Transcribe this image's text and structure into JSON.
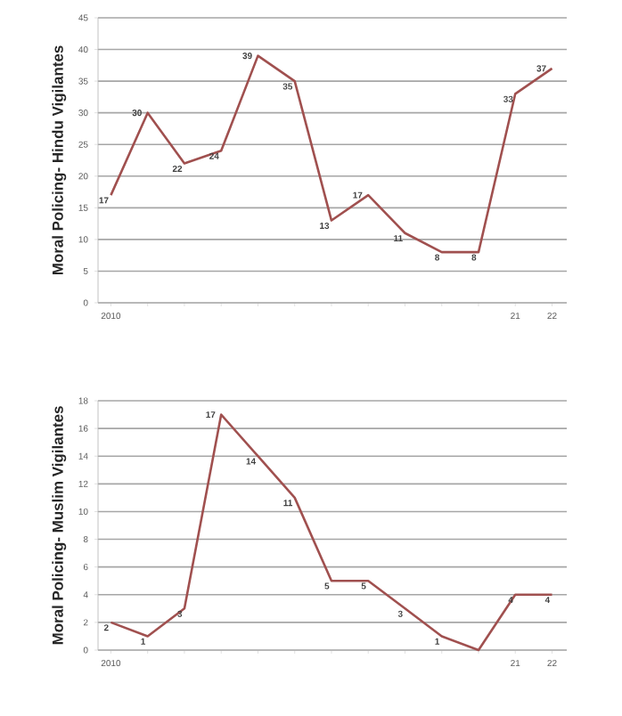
{
  "chart_data": [
    {
      "type": "line",
      "ylabel": "Moral Policing- Hindu Vigilantes",
      "categories": [
        "2010",
        null,
        null,
        null,
        null,
        null,
        null,
        null,
        null,
        null,
        null,
        "21",
        "22"
      ],
      "series": [
        {
          "color": "#a0504f",
          "values": [
            17,
            30,
            22,
            24,
            39,
            35,
            13,
            17,
            11,
            8,
            8,
            33,
            37
          ]
        }
      ],
      "ylim": [
        0,
        45
      ],
      "yticks": [
        0,
        5,
        10,
        15,
        20,
        25,
        30,
        35,
        40,
        45
      ],
      "grid": "y",
      "data_labels": true
    },
    {
      "type": "line",
      "ylabel": "Moral Policing- Muslim Vigilantes",
      "categories": [
        "2010",
        null,
        null,
        null,
        null,
        null,
        null,
        null,
        null,
        null,
        null,
        "21",
        "22"
      ],
      "series": [
        {
          "color": "#a0504f",
          "values": [
            2,
            1,
            3,
            17,
            14,
            11,
            5,
            5,
            3,
            1,
            0,
            4,
            4
          ],
          "value_labels": [
            "2",
            "1",
            "3",
            "17",
            "14",
            "11",
            "5",
            "5",
            "3",
            "1",
            null,
            "4",
            "4"
          ]
        }
      ],
      "ylim": [
        0,
        18
      ],
      "yticks": [
        0,
        2,
        4,
        6,
        8,
        10,
        12,
        14,
        16,
        18
      ],
      "grid": "y"
    }
  ]
}
